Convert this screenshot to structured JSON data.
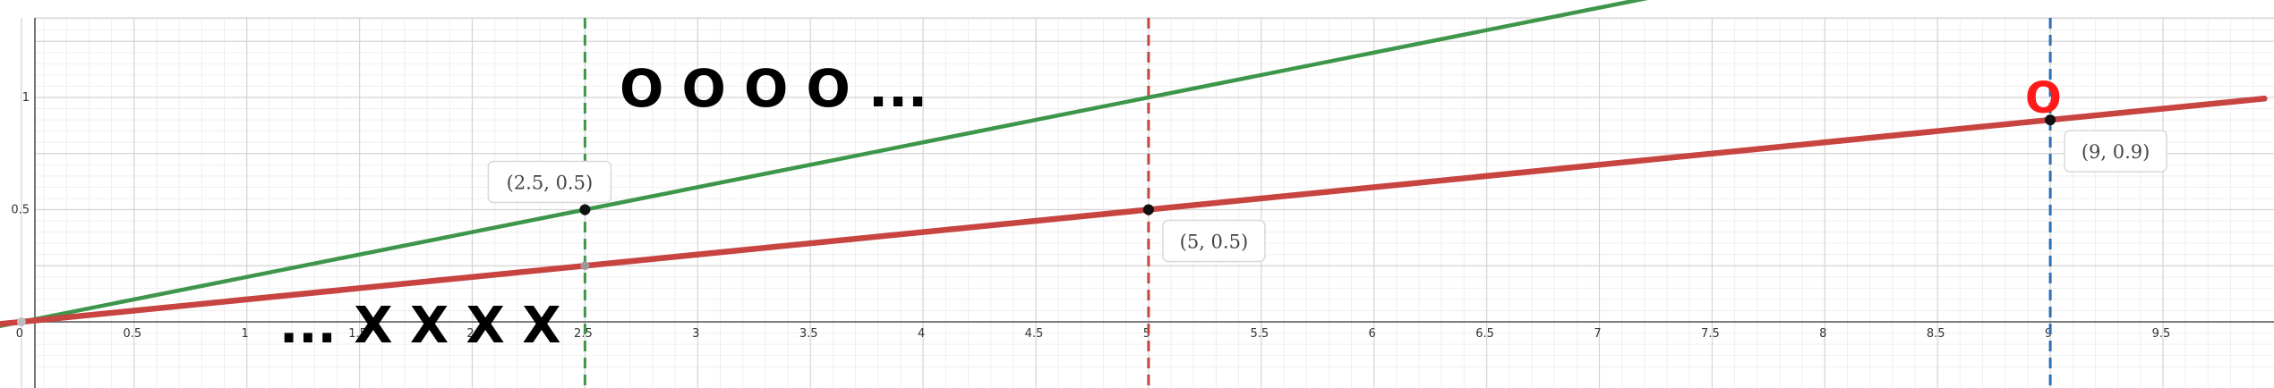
{
  "chart_data": {
    "type": "line",
    "grid": true,
    "xlim": [
      -0.15,
      9.95
    ],
    "ylim": [
      -0.21,
      1.37
    ],
    "x_ticks": [
      "0",
      "0.5",
      "1",
      "1.5",
      "2",
      "2.5",
      "3",
      "3.5",
      "4",
      "4.5",
      "5",
      "5.5",
      "6",
      "6.5",
      "7",
      "7.5",
      "8",
      "8.5",
      "9",
      "9.5"
    ],
    "y_ticks": [
      "0.5",
      "1"
    ],
    "series": [
      {
        "color": "#3d9649",
        "slope": 0.2,
        "x": [
          0,
          2.5,
          5,
          6.8
        ],
        "y": [
          0,
          0.5,
          1,
          1.36
        ]
      },
      {
        "color": "#c74440",
        "slope": 0.1,
        "x": [
          0,
          2.5,
          5,
          9,
          9.95
        ],
        "y": [
          0,
          0.25,
          0.5,
          0.9,
          0.995
        ]
      }
    ],
    "vertical_lines": [
      {
        "x": 2.5,
        "color": "#3d9649"
      },
      {
        "x": 5,
        "color": "#c74440"
      },
      {
        "x": 9,
        "color": "#2d70b3"
      }
    ],
    "points": [
      {
        "x": 2.5,
        "y": 0.5,
        "label": "(2.5, 0.5)"
      },
      {
        "x": 5,
        "y": 0.5,
        "label": "(5, 0.5)"
      },
      {
        "x": 9,
        "y": 0.9,
        "label": "(9, 0.9)"
      }
    ],
    "annotations": [
      {
        "text": "O O O O ...",
        "color": "#000000"
      },
      {
        "text": "O",
        "color": "#ff1a1a"
      },
      {
        "text": "... X X X X",
        "color": "#000000"
      }
    ]
  }
}
